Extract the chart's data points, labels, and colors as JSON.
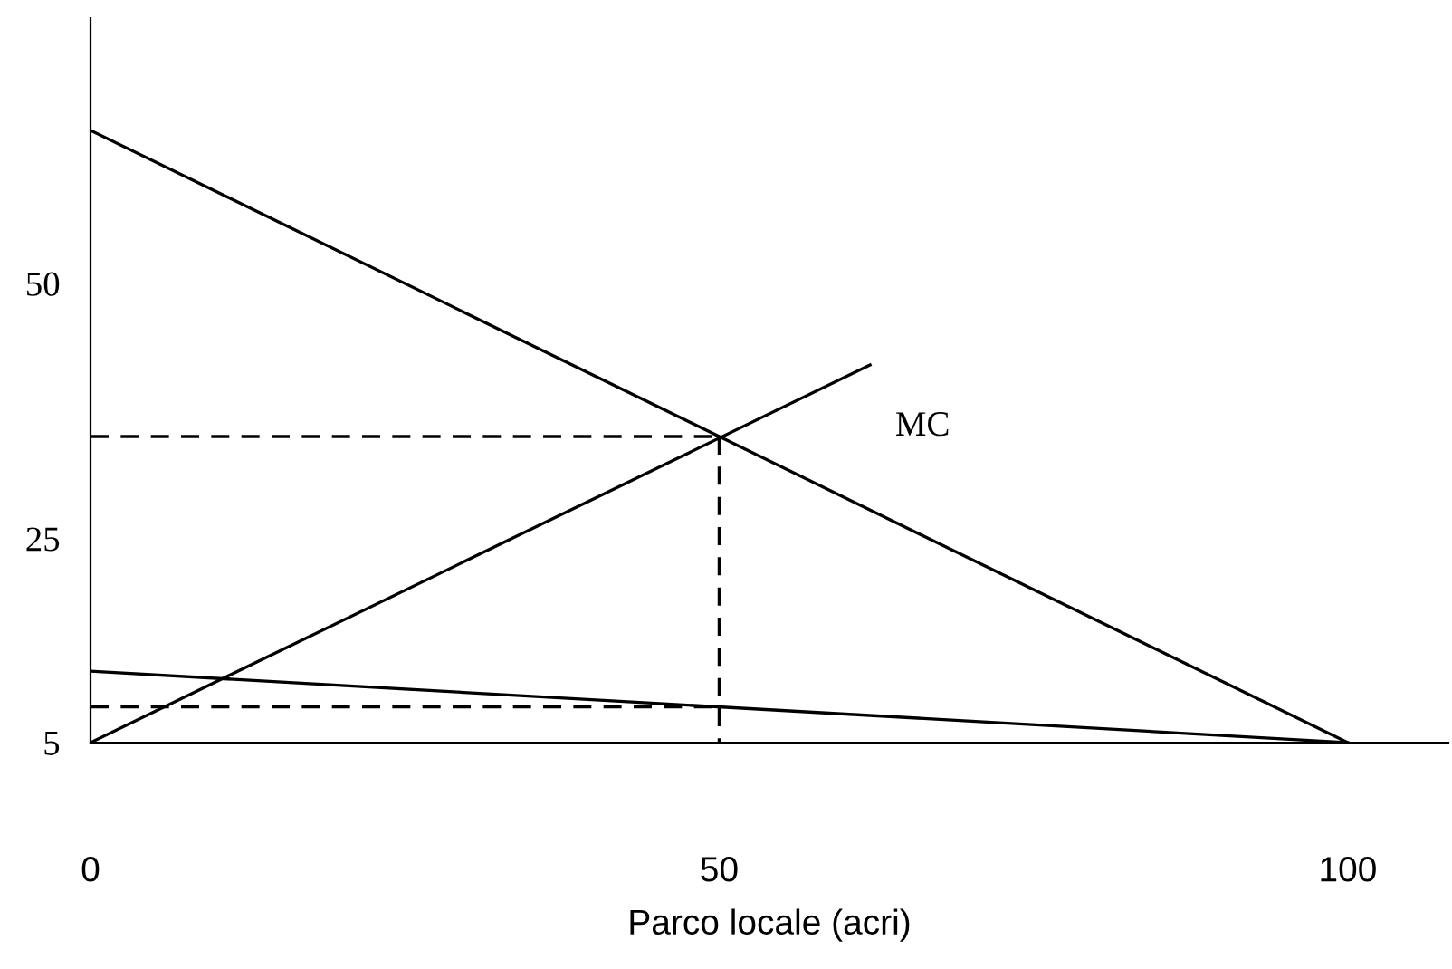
{
  "chart_data": {
    "type": "line",
    "xlabel": "Parco locale (acri)",
    "xlim": [
      0,
      108
    ],
    "ylim": [
      5,
      76
    ],
    "xticks": [
      0,
      50,
      100
    ],
    "yticks": [
      5,
      25,
      50
    ],
    "grid": false,
    "legend": false,
    "marker": "none",
    "series": [
      {
        "color": "#000000",
        "x": [
          0,
          100
        ],
        "values": [
          65,
          5
        ],
        "line_style": "solid"
      },
      {
        "name": "MC",
        "color": "#000000",
        "x": [
          0,
          62
        ],
        "values": [
          5,
          42
        ],
        "line_style": "solid"
      },
      {
        "color": "#000000",
        "x": [
          0,
          100
        ],
        "values": [
          12,
          5
        ],
        "line_style": "solid"
      },
      {
        "color": "#000000",
        "x": [
          0,
          50
        ],
        "values": [
          35,
          35
        ],
        "line_style": "dashed"
      },
      {
        "color": "#000000",
        "x": [
          50,
          50
        ],
        "values": [
          35,
          5
        ],
        "line_style": "dashed"
      },
      {
        "color": "#000000",
        "x": [
          0,
          50
        ],
        "values": [
          8.5,
          8.5
        ],
        "line_style": "dashed"
      }
    ]
  }
}
